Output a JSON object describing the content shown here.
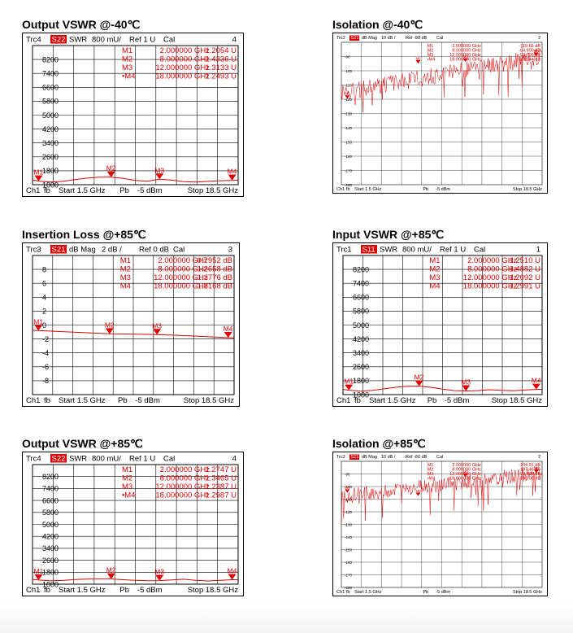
{
  "colors": {
    "trace": "#e00000",
    "grid": "#000000",
    "badge": "#e00000",
    "marker_text": "#e00000"
  },
  "panels": [
    {
      "id": "p1",
      "title": "Output VSWR @-40℃",
      "style": "large",
      "header": {
        "trc": "Trc4",
        "param": "S22",
        "fmt": "SWR",
        "scale": "800 mU/",
        "ref": "Ref 1 U",
        "cal": "Cal",
        "num": "4"
      },
      "markers": [
        {
          "name": "M1",
          "freq": "2.000000 GHz",
          "value": "1.2054 U"
        },
        {
          "name": "M2",
          "freq": "8.000000 GHz",
          "value": "1.4336 U"
        },
        {
          "name": "M3",
          "freq": "12.000000 GHz",
          "value": "1.3133 U"
        },
        {
          "name": "•M4",
          "freq": "18.000000 GHz",
          "value": "1.2493 U"
        }
      ],
      "footer": {
        "ch": "Ch1",
        "fb": "fb",
        "start": "Start 1.5 GHz",
        "pb": "Pb",
        "power": "-5 dBm",
        "stop": "Stop 18.5 GHz"
      }
    },
    {
      "id": "p2",
      "title": "Isolation @-40℃",
      "style": "small",
      "header": {
        "trc": "Trc2",
        "param": "S21",
        "fmt": "dB Mag",
        "scale": "10 dB /",
        "ref": "Ref -80 dB",
        "cal": "Cal",
        "num": "2"
      },
      "markers": [
        {
          "name": "M1",
          "freq": "2.000000 GHz",
          "value": "-119.66 dB"
        },
        {
          "name": "M2",
          "freq": "8.000000 GHz",
          "value": "-94.900 dB"
        },
        {
          "name": "M3",
          "freq": "12.000000 GHz",
          "value": "-93.706 dB"
        },
        {
          "name": "•M4",
          "freq": "18.000000 GHz",
          "value": "-89.544 dB"
        }
      ],
      "footer": {
        "ch": "Ch1",
        "fb": "fb",
        "start": "Start 1.5 GHz",
        "pb": "Pb",
        "power": "-5 dBm",
        "stop": "Stop 18.5 GHz"
      }
    },
    {
      "id": "p3",
      "title": "Insertion Loss @+85℃",
      "style": "large",
      "header": {
        "trc": "Trc3",
        "param": "S21",
        "fmt": "dB Mag",
        "scale": "2 dB /",
        "ref": "Ref 0 dB",
        "cal": "Cal",
        "num": "3"
      },
      "markers": [
        {
          "name": "M1",
          "freq": "2.000000 GHz",
          "value": "-0.7952 dB"
        },
        {
          "name": "M2",
          "freq": "8.000000 GHz",
          "value": "-1.2658 dB"
        },
        {
          "name": "M3",
          "freq": "12.000000 GHz",
          "value": "-1.3776 dB"
        },
        {
          "name": "M4",
          "freq": "18.000000 GHz",
          "value": "-1.8168 dB"
        }
      ],
      "footer": {
        "ch": "Ch1",
        "fb": "fb",
        "start": "Start 1.5 GHz",
        "pb": "Pb",
        "power": "-5 dBm",
        "stop": "Stop 18.5 GHz"
      }
    },
    {
      "id": "p4",
      "title": "Input VSWR @+85℃",
      "style": "large",
      "header": {
        "trc": "Trc1",
        "param": "S11",
        "fmt": "SWR",
        "scale": "800 mU/",
        "ref": "Ref 1 U",
        "cal": "Cal",
        "num": "1"
      },
      "markers": [
        {
          "name": "M1",
          "freq": "2.000000 GHz",
          "value": "1.2510 U"
        },
        {
          "name": "M2",
          "freq": "8.000000 GHz",
          "value": "1.4882 U"
        },
        {
          "name": "M3",
          "freq": "12.000000 GHz",
          "value": "1.2092 U"
        },
        {
          "name": "M4",
          "freq": "18.000000 GHz",
          "value": "1.2991 U"
        }
      ],
      "footer": {
        "ch": "Ch1",
        "fb": "fb",
        "start": "Start 1.5 GHz",
        "pb": "Pb",
        "power": "-5 dBm",
        "stop": "Stop 18.5 GHz"
      }
    },
    {
      "id": "p5",
      "title": "Output VSWR @+85℃",
      "style": "large",
      "header": {
        "trc": "Trc4",
        "param": "S22",
        "fmt": "SWR",
        "scale": "800 mU/",
        "ref": "Ref 1 U",
        "cal": "Cal",
        "num": "4"
      },
      "markers": [
        {
          "name": "M1",
          "freq": "2.000000 GHz",
          "value": "1.2747 U"
        },
        {
          "name": "M2",
          "freq": "8.000000 GHz",
          "value": "1.3465 U"
        },
        {
          "name": "M3",
          "freq": "12.000000 GHz",
          "value": "1.2387 U"
        },
        {
          "name": "•M4",
          "freq": "18.000000 GHz",
          "value": "1.2987 U"
        }
      ],
      "footer": {
        "ch": "Ch1",
        "fb": "fb",
        "start": "Start 1.5 GHz",
        "pb": "Pb",
        "power": "-5 dBm",
        "stop": "Stop 18.5 GHz"
      }
    },
    {
      "id": "p6",
      "title": "Isolation @+85℃",
      "style": "small",
      "header": {
        "trc": "Trc2",
        "param": "S21",
        "fmt": "dB Mag",
        "scale": "10 dB /",
        "ref": "Ref -80 dB",
        "cal": "Cal",
        "num": "2"
      },
      "markers": [
        {
          "name": "M1",
          "freq": "2.000000 GHz",
          "value": "-104.91 dB"
        },
        {
          "name": "M2",
          "freq": "8.000000 GHz",
          "value": "-107.46 dB"
        },
        {
          "name": "M3",
          "freq": "12.000000 GHz",
          "value": "-92.496 dB"
        },
        {
          "name": "•M4",
          "freq": "18.000000 GHz",
          "value": "-89.200 dB"
        }
      ],
      "footer": {
        "ch": "Ch1",
        "fb": "fb",
        "start": "Start 1.5 GHz",
        "pb": "Pb",
        "power": "-5 dBm",
        "stop": "Stop 18.5 GHz"
      }
    }
  ],
  "chart_data": [
    {
      "type": "line",
      "title": "Output VSWR @-40℃",
      "xlim": [
        1.5,
        18.5
      ],
      "ylim": [
        1000,
        9000
      ],
      "yticks": [
        "8200",
        "7400",
        "6600",
        "5800",
        "5000",
        "4200",
        "3400",
        "2600",
        "1800",
        "1000"
      ],
      "tick_values": [
        8200,
        7400,
        6600,
        5800,
        5000,
        4200,
        3400,
        2600,
        1800,
        1000
      ],
      "series": [
        {
          "x": [
            1.5,
            2,
            3,
            4,
            5,
            6,
            7,
            8,
            9,
            10,
            11,
            12,
            13,
            14,
            15,
            16,
            17,
            18,
            18.5
          ],
          "y": [
            1280,
            1205,
            1150,
            1190,
            1290,
            1380,
            1430,
            1434,
            1360,
            1250,
            1200,
            1313,
            1260,
            1180,
            1150,
            1190,
            1230,
            1249,
            1260
          ]
        }
      ],
      "markers": [
        {
          "label": "M1",
          "x": 2,
          "y": 1205
        },
        {
          "label": "M2",
          "x": 8,
          "y": 1434
        },
        {
          "label": "M3",
          "x": 12,
          "y": 1313
        },
        {
          "label": "M4",
          "x": 18,
          "y": 1249
        }
      ]
    },
    {
      "type": "line",
      "title": "Isolation @-40℃",
      "xlim": [
        1.5,
        18.5
      ],
      "ylim": [
        -180,
        -80
      ],
      "yticks": [
        "-80",
        "-90",
        "-100",
        "-110",
        "-120",
        "-130",
        "-140",
        "-150",
        "-160",
        "-170",
        "-180"
      ],
      "tick_values": [
        -80,
        -90,
        -100,
        -110,
        -120,
        -130,
        -140,
        -150,
        -160,
        -170,
        -180
      ],
      "series": [
        {
          "x": [
            1.5,
            18.5
          ],
          "y": [
            -115,
            -90
          ],
          "noise": 6
        }
      ],
      "markers": [
        {
          "label": "M1",
          "x": 2,
          "y": -119.66
        },
        {
          "label": "M2",
          "x": 8,
          "y": -94.9
        },
        {
          "label": "M3",
          "x": 12,
          "y": -93.706
        },
        {
          "label": "M4",
          "x": 18,
          "y": -89.544
        }
      ]
    },
    {
      "type": "line",
      "title": "Insertion Loss @+85℃",
      "xlim": [
        1.5,
        18.5
      ],
      "ylim": [
        -10,
        10
      ],
      "yticks": [
        "8",
        "6",
        "4",
        "2",
        "0",
        "-2",
        "-4",
        "-6",
        "-8"
      ],
      "tick_values": [
        8,
        6,
        4,
        2,
        0,
        -2,
        -4,
        -6,
        -8
      ],
      "series": [
        {
          "x": [
            1.5,
            2,
            4,
            6,
            8,
            10,
            12,
            14,
            16,
            18,
            18.5
          ],
          "y": [
            -0.75,
            -0.7952,
            -0.95,
            -1.1,
            -1.2658,
            -1.3,
            -1.3776,
            -1.5,
            -1.65,
            -1.8168,
            -1.85
          ]
        }
      ],
      "markers": [
        {
          "label": "M1",
          "x": 2,
          "y": -0.7952
        },
        {
          "label": "M2",
          "x": 8,
          "y": -1.2658
        },
        {
          "label": "M3",
          "x": 12,
          "y": -1.3776
        },
        {
          "label": "M4",
          "x": 18,
          "y": -1.8168
        }
      ]
    },
    {
      "type": "line",
      "title": "Input VSWR @+85℃",
      "xlim": [
        1.5,
        18.5
      ],
      "ylim": [
        1000,
        9000
      ],
      "yticks": [
        "8200",
        "7400",
        "6600",
        "5800",
        "5000",
        "4200",
        "3400",
        "2600",
        "1800",
        "1000"
      ],
      "tick_values": [
        8200,
        7400,
        6600,
        5800,
        5000,
        4200,
        3400,
        2600,
        1800,
        1000
      ],
      "series": [
        {
          "x": [
            1.5,
            2,
            3,
            4,
            5,
            6,
            7,
            8,
            9,
            10,
            11,
            12,
            13,
            14,
            15,
            16,
            17,
            18,
            18.5
          ],
          "y": [
            1300,
            1251,
            1200,
            1240,
            1330,
            1420,
            1480,
            1488,
            1420,
            1320,
            1230,
            1209,
            1230,
            1280,
            1250,
            1220,
            1260,
            1299,
            1310
          ]
        }
      ],
      "markers": [
        {
          "label": "M1",
          "x": 2,
          "y": 1251
        },
        {
          "label": "M2",
          "x": 8,
          "y": 1488
        },
        {
          "label": "M3",
          "x": 12,
          "y": 1209
        },
        {
          "label": "M4",
          "x": 18,
          "y": 1299
        }
      ]
    },
    {
      "type": "line",
      "title": "Output VSWR @+85℃",
      "xlim": [
        1.5,
        18.5
      ],
      "ylim": [
        1000,
        9000
      ],
      "yticks": [
        "8200",
        "7400",
        "6600",
        "5800",
        "5000",
        "4200",
        "3400",
        "2600",
        "1800",
        "1000"
      ],
      "tick_values": [
        8200,
        7400,
        6600,
        5800,
        5000,
        4200,
        3400,
        2600,
        1800,
        1000
      ],
      "series": [
        {
          "x": [
            1.5,
            2,
            3,
            4,
            5,
            6,
            7,
            8,
            9,
            10,
            11,
            12,
            13,
            14,
            15,
            16,
            17,
            18,
            18.5
          ],
          "y": [
            1320,
            1275,
            1230,
            1250,
            1310,
            1340,
            1350,
            1347,
            1300,
            1260,
            1230,
            1239,
            1290,
            1330,
            1260,
            1220,
            1260,
            1299,
            1300
          ]
        }
      ],
      "markers": [
        {
          "label": "M1",
          "x": 2,
          "y": 1275
        },
        {
          "label": "M2",
          "x": 8,
          "y": 1347
        },
        {
          "label": "M3",
          "x": 12,
          "y": 1239
        },
        {
          "label": "M4",
          "x": 18,
          "y": 1299
        }
      ]
    },
    {
      "type": "line",
      "title": "Isolation @+85℃",
      "xlim": [
        1.5,
        18.5
      ],
      "ylim": [
        -180,
        -80
      ],
      "yticks": [
        "-80",
        "-90",
        "-100",
        "-110",
        "-120",
        "-130",
        "-140",
        "-150",
        "-160",
        "-170",
        "-180"
      ],
      "tick_values": [
        -80,
        -90,
        -100,
        -110,
        -120,
        -130,
        -140,
        -150,
        -160,
        -170,
        -180
      ],
      "series": [
        {
          "x": [
            1.5,
            18.5
          ],
          "y": [
            -108,
            -89
          ],
          "noise": 6
        }
      ],
      "markers": [
        {
          "label": "M1",
          "x": 2,
          "y": -104.91
        },
        {
          "label": "M2",
          "x": 8,
          "y": -107.46
        },
        {
          "label": "M3",
          "x": 12,
          "y": -92.496
        },
        {
          "label": "M4",
          "x": 18,
          "y": -89.2
        }
      ]
    }
  ]
}
